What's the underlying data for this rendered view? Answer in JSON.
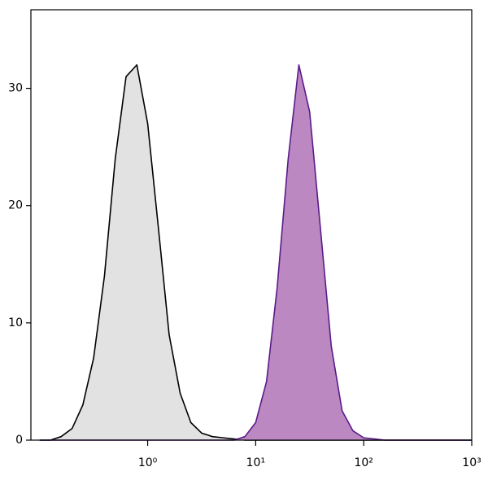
{
  "chart_data": {
    "type": "histogram-overlay",
    "x": [
      0.1,
      0.126,
      0.158,
      0.2,
      0.251,
      0.316,
      0.398,
      0.501,
      0.631,
      0.794,
      1,
      1.26,
      1.58,
      2,
      2.51,
      3.16,
      3.98,
      5.01,
      6.31,
      7.94,
      10,
      12.6,
      15.8,
      20,
      25.1,
      31.6,
      39.8,
      50.1,
      63.1,
      79.4,
      100,
      126,
      158,
      200,
      251,
      316,
      398,
      501,
      631,
      794,
      1000
    ],
    "series": [
      {
        "color": "#000000",
        "fill": "#e2e2e2",
        "values": [
          0,
          0,
          0.3,
          1,
          3,
          7,
          14,
          24,
          31,
          32,
          27,
          18,
          9,
          4,
          1.5,
          0.6,
          0.3,
          0.2,
          0.1,
          0,
          0,
          0,
          0,
          0,
          0,
          0,
          0,
          0,
          0,
          0,
          0,
          0,
          0,
          0,
          0,
          0,
          0,
          0,
          0,
          0,
          0
        ]
      },
      {
        "color": "#5a1a8a",
        "fill": "#bb88c2",
        "values": [
          0,
          0,
          0,
          0,
          0,
          0,
          0,
          0,
          0,
          0,
          0,
          0,
          0,
          0,
          0,
          0,
          0,
          0,
          0,
          0.3,
          1.5,
          5,
          13,
          24,
          32,
          28,
          18,
          8,
          2.5,
          0.8,
          0.2,
          0.1,
          0,
          0,
          0,
          0,
          0,
          0,
          0,
          0,
          0
        ]
      }
    ],
    "xscale": "log",
    "xlim": [
      0.083,
      1000
    ],
    "xticks": [
      {
        "value": 1,
        "label": "10⁰"
      },
      {
        "value": 10,
        "label": "10¹"
      },
      {
        "value": 100,
        "label": "10²"
      },
      {
        "value": 1000,
        "label": "10³"
      }
    ],
    "ylim": [
      0,
      36.7
    ],
    "yticks": [
      0,
      10,
      20,
      30
    ]
  }
}
